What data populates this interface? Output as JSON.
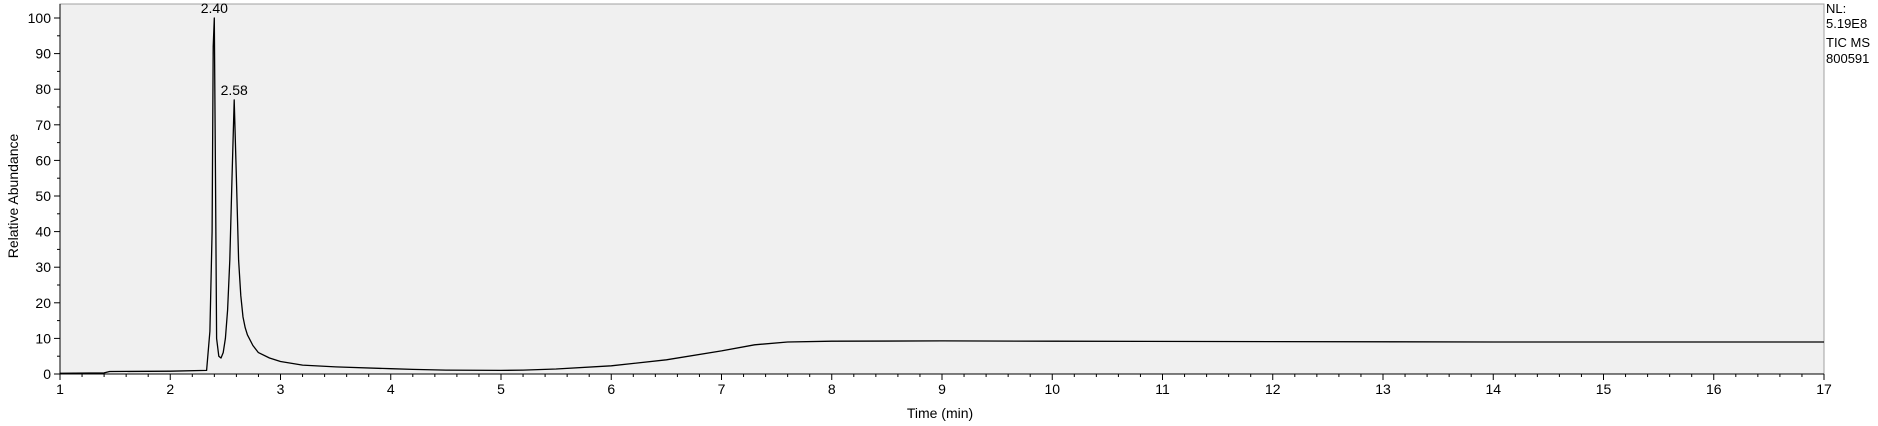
{
  "chart_data": {
    "type": "line",
    "title": "",
    "xlabel": "Time (min)",
    "ylabel": "Relative Abundance",
    "xlim": [
      1,
      17
    ],
    "ylim": [
      0,
      100
    ],
    "x_ticks": [
      1,
      2,
      3,
      4,
      5,
      6,
      7,
      8,
      9,
      10,
      11,
      12,
      13,
      14,
      15,
      16,
      17
    ],
    "y_ticks": [
      0,
      10,
      20,
      30,
      40,
      50,
      60,
      70,
      80,
      90,
      100
    ],
    "grid": false,
    "legend": "none",
    "info_lines": [
      "NL:",
      "5.19E8",
      "TIC  MS",
      "800591"
    ],
    "annotations": [
      {
        "x": 2.4,
        "y": 100,
        "text": "2.40"
      },
      {
        "x": 2.58,
        "y": 77,
        "text": "2.58"
      }
    ],
    "series": [
      {
        "x": [
          1.0,
          1.4,
          1.45,
          2.0,
          2.33,
          2.36,
          2.38,
          2.39,
          2.4,
          2.41,
          2.42,
          2.44,
          2.46,
          2.48,
          2.5,
          2.52,
          2.54,
          2.56,
          2.58,
          2.6,
          2.62,
          2.64,
          2.66,
          2.68,
          2.7,
          2.75,
          2.8,
          2.9,
          3.0,
          3.2,
          3.5,
          4.0,
          4.2,
          4.5,
          5.0,
          5.2,
          5.5,
          6.0,
          6.5,
          7.0,
          7.3,
          7.6,
          8.0,
          9.0,
          10.0,
          12.0,
          14.0,
          16.0,
          17.0
        ],
        "values": [
          0.2,
          0.3,
          0.7,
          0.8,
          1.0,
          12,
          40,
          92,
          100,
          55,
          10,
          5,
          4.5,
          6,
          10,
          18,
          32,
          55,
          77,
          55,
          32,
          22,
          16,
          13,
          11,
          8,
          6,
          4.5,
          3.5,
          2.5,
          2.0,
          1.5,
          1.3,
          1.1,
          1.0,
          1.1,
          1.4,
          2.3,
          4.0,
          6.5,
          8.2,
          9.0,
          9.2,
          9.3,
          9.2,
          9.1,
          9.0,
          9.0,
          9.0
        ]
      }
    ]
  }
}
